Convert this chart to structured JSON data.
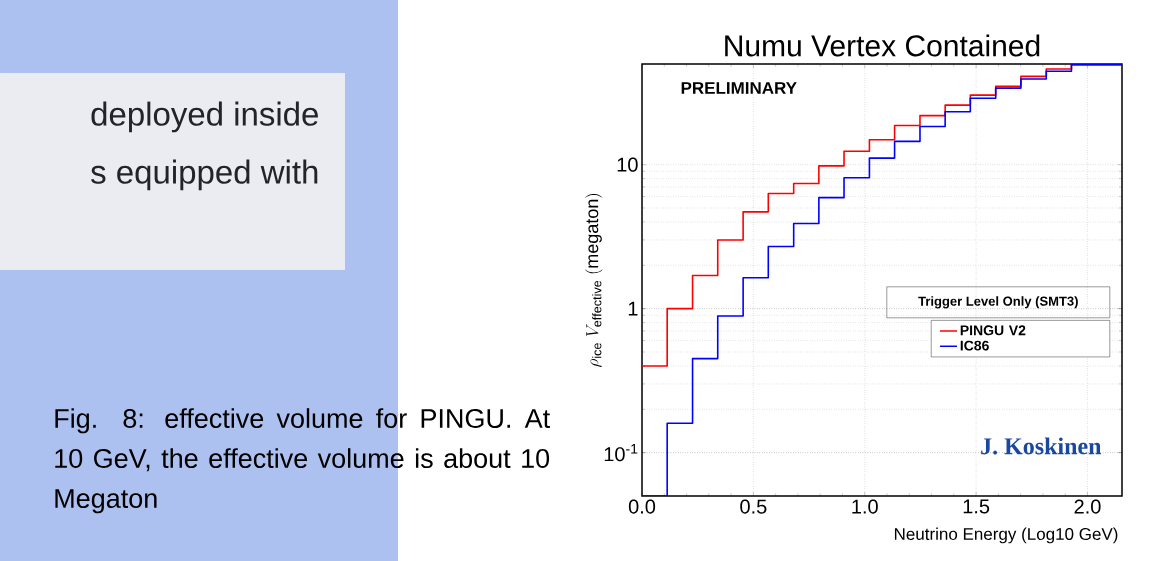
{
  "chart_data": {
    "type": "histogram",
    "title": "Numu Vertex Contained",
    "xlabel": "Neutrino Energy (Log10 GeV)",
    "ylabel": "\\rho_{\\mathrm{ice}}\\ V_{\\mathrm{effective}}\\ \\mathrm{(megaton)}",
    "legend_title": "Trigger Level Only (SMT3)",
    "bins": [
      0,
      0.113,
      0.227,
      0.34,
      0.454,
      0.567,
      0.681,
      0.794,
      0.907,
      1.021,
      1.134,
      1.248,
      1.361,
      1.474,
      1.588,
      1.701,
      1.815,
      1.928,
      2.042,
      2.155
    ],
    "series": [
      {
        "name": "PINGU V2",
        "color": "#ff0000",
        "values": [
          0.4,
          1.0,
          1.7,
          3.0,
          4.7,
          6.3,
          7.4,
          9.8,
          12.4,
          14.9,
          18.7,
          21.9,
          25.9,
          30.4,
          35.0,
          41.0,
          46.1,
          49.5,
          49.5
        ]
      },
      {
        "name": "IC86",
        "color": "#0000ff",
        "values": [
          0.05,
          0.16,
          0.45,
          0.89,
          1.64,
          2.7,
          3.9,
          5.9,
          8.1,
          11.1,
          14.5,
          18.4,
          23.3,
          28.9,
          34.0,
          39.3,
          44.5,
          49.5,
          49.5
        ]
      }
    ],
    "xlim": [
      0,
      2.155
    ],
    "ylim": [
      0.05,
      50
    ],
    "log": "y",
    "xticks": [
      {
        "value": 0,
        "label": "0.0"
      },
      0.5,
      {
        "value": 1,
        "label": "1.0"
      },
      1.5,
      {
        "value": 2,
        "label": "2.0"
      }
    ],
    "yticks": [
      {
        "value": 0.1,
        "label": "10$^{-1}$"
      },
      1,
      10
    ],
    "grid": true,
    "legend": "right",
    "annotations": [
      "PRELIMINARY",
      "J. Koskinen",
      "deployed inside",
      "s equipped with",
      "Fig. 8: effective volume for PINGU. At 10 GeV, the effective volume is about 10 Megaton"
    ]
  }
}
